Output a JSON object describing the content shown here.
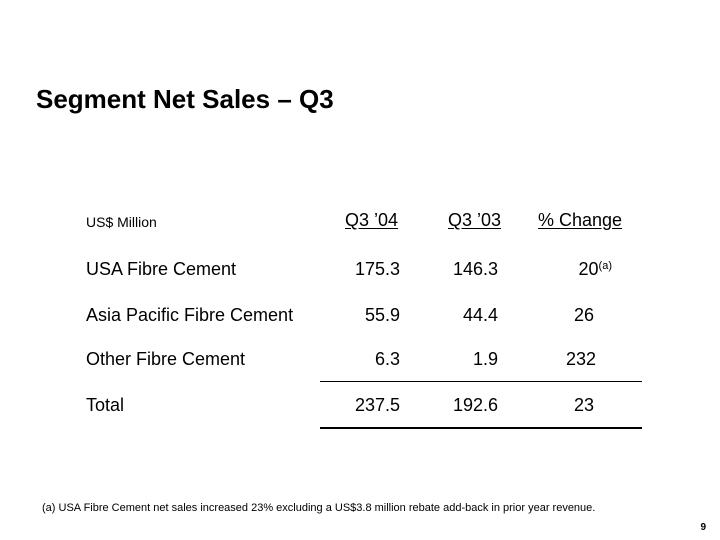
{
  "title": "Segment Net Sales – Q3",
  "units_label": "US$ Million",
  "columns": [
    "Q3 ’04",
    "Q3 ’03",
    "% Change"
  ],
  "rows": [
    {
      "label": "USA Fibre Cement",
      "q3_04": "175.3",
      "q3_03": "146.3",
      "change": "20",
      "change_note": "(a)"
    },
    {
      "label": "Asia Pacific Fibre Cement",
      "q3_04": "55.9",
      "q3_03": "44.4",
      "change": "26"
    },
    {
      "label": "Other Fibre Cement",
      "q3_04": "6.3",
      "q3_03": "1.9",
      "change": "232"
    },
    {
      "label": "Total",
      "q3_04": "237.5",
      "q3_03": "192.6",
      "change": "23"
    }
  ],
  "footnote": "(a) USA Fibre Cement net sales increased 23% excluding a US$3.8 million rebate add-back in prior year revenue.",
  "page_number": "9"
}
